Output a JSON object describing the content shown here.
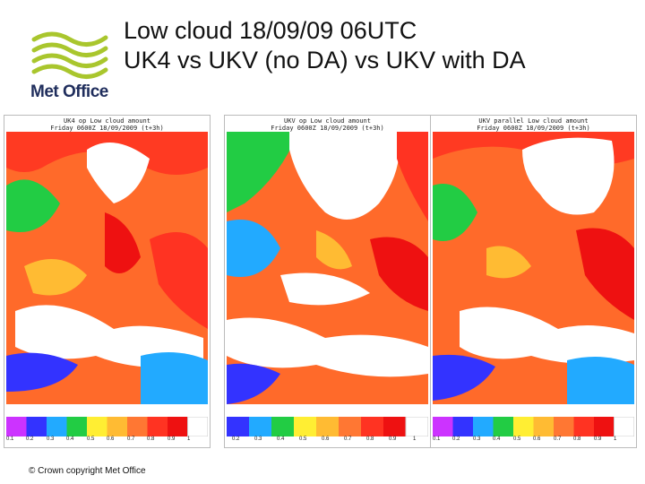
{
  "slide": {
    "title_line1": "Low cloud 18/09/09 06UTC",
    "title_line2": "UK4 vs UKV (no DA) vs UKV with DA",
    "copyright": "© Crown copyright   Met Office"
  },
  "logo": {
    "text": "Met Office",
    "color": "#1f2d5c",
    "swoosh_color": "#a9c62d"
  },
  "panels": [
    {
      "head_line1": "UK4 op Low cloud amount",
      "head_line2": "Friday 0600Z 18/09/2009   (t+3h)"
    },
    {
      "head_line1": "UKV op Low cloud amount",
      "head_line2": "Friday 0600Z 18/09/2009   (t+3h)"
    },
    {
      "head_line1": "UKV parallel Low cloud amount",
      "head_line2": "Friday 0600Z 18/09/2009   (t+3h)"
    }
  ],
  "color_scale": {
    "colors": [
      "#cc33ff",
      "#3333ff",
      "#22aaff",
      "#22cc44",
      "#ffee33",
      "#ffbb33",
      "#ff7733",
      "#ff3322",
      "#ee1111",
      "#ffffff"
    ],
    "labels_first": [
      "0.1",
      "0.2",
      "0.3",
      "0.4",
      "0.5",
      "0.6",
      "0.7",
      "0.8",
      "0.9",
      "1"
    ],
    "labels_other": [
      "0.2",
      "0.3",
      "0.4",
      "0.5",
      "0.6",
      "0.7",
      "0.8",
      "0.9",
      "1"
    ]
  }
}
